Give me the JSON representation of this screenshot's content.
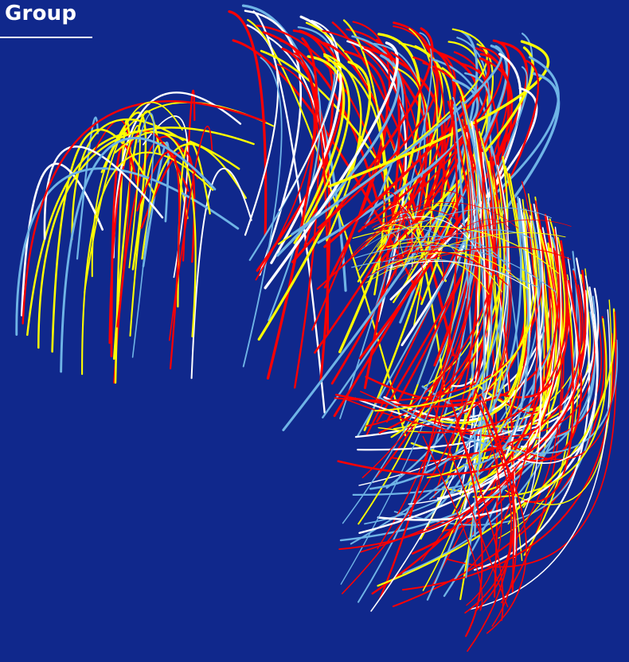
{
  "brand": {
    "label": "Group"
  },
  "artwork": {
    "icon": "arc-globe-graphic",
    "background_color": "#10288c",
    "palette": [
      "#ff0000",
      "#ffff00",
      "#ffffff",
      "#6fb4e6"
    ]
  }
}
